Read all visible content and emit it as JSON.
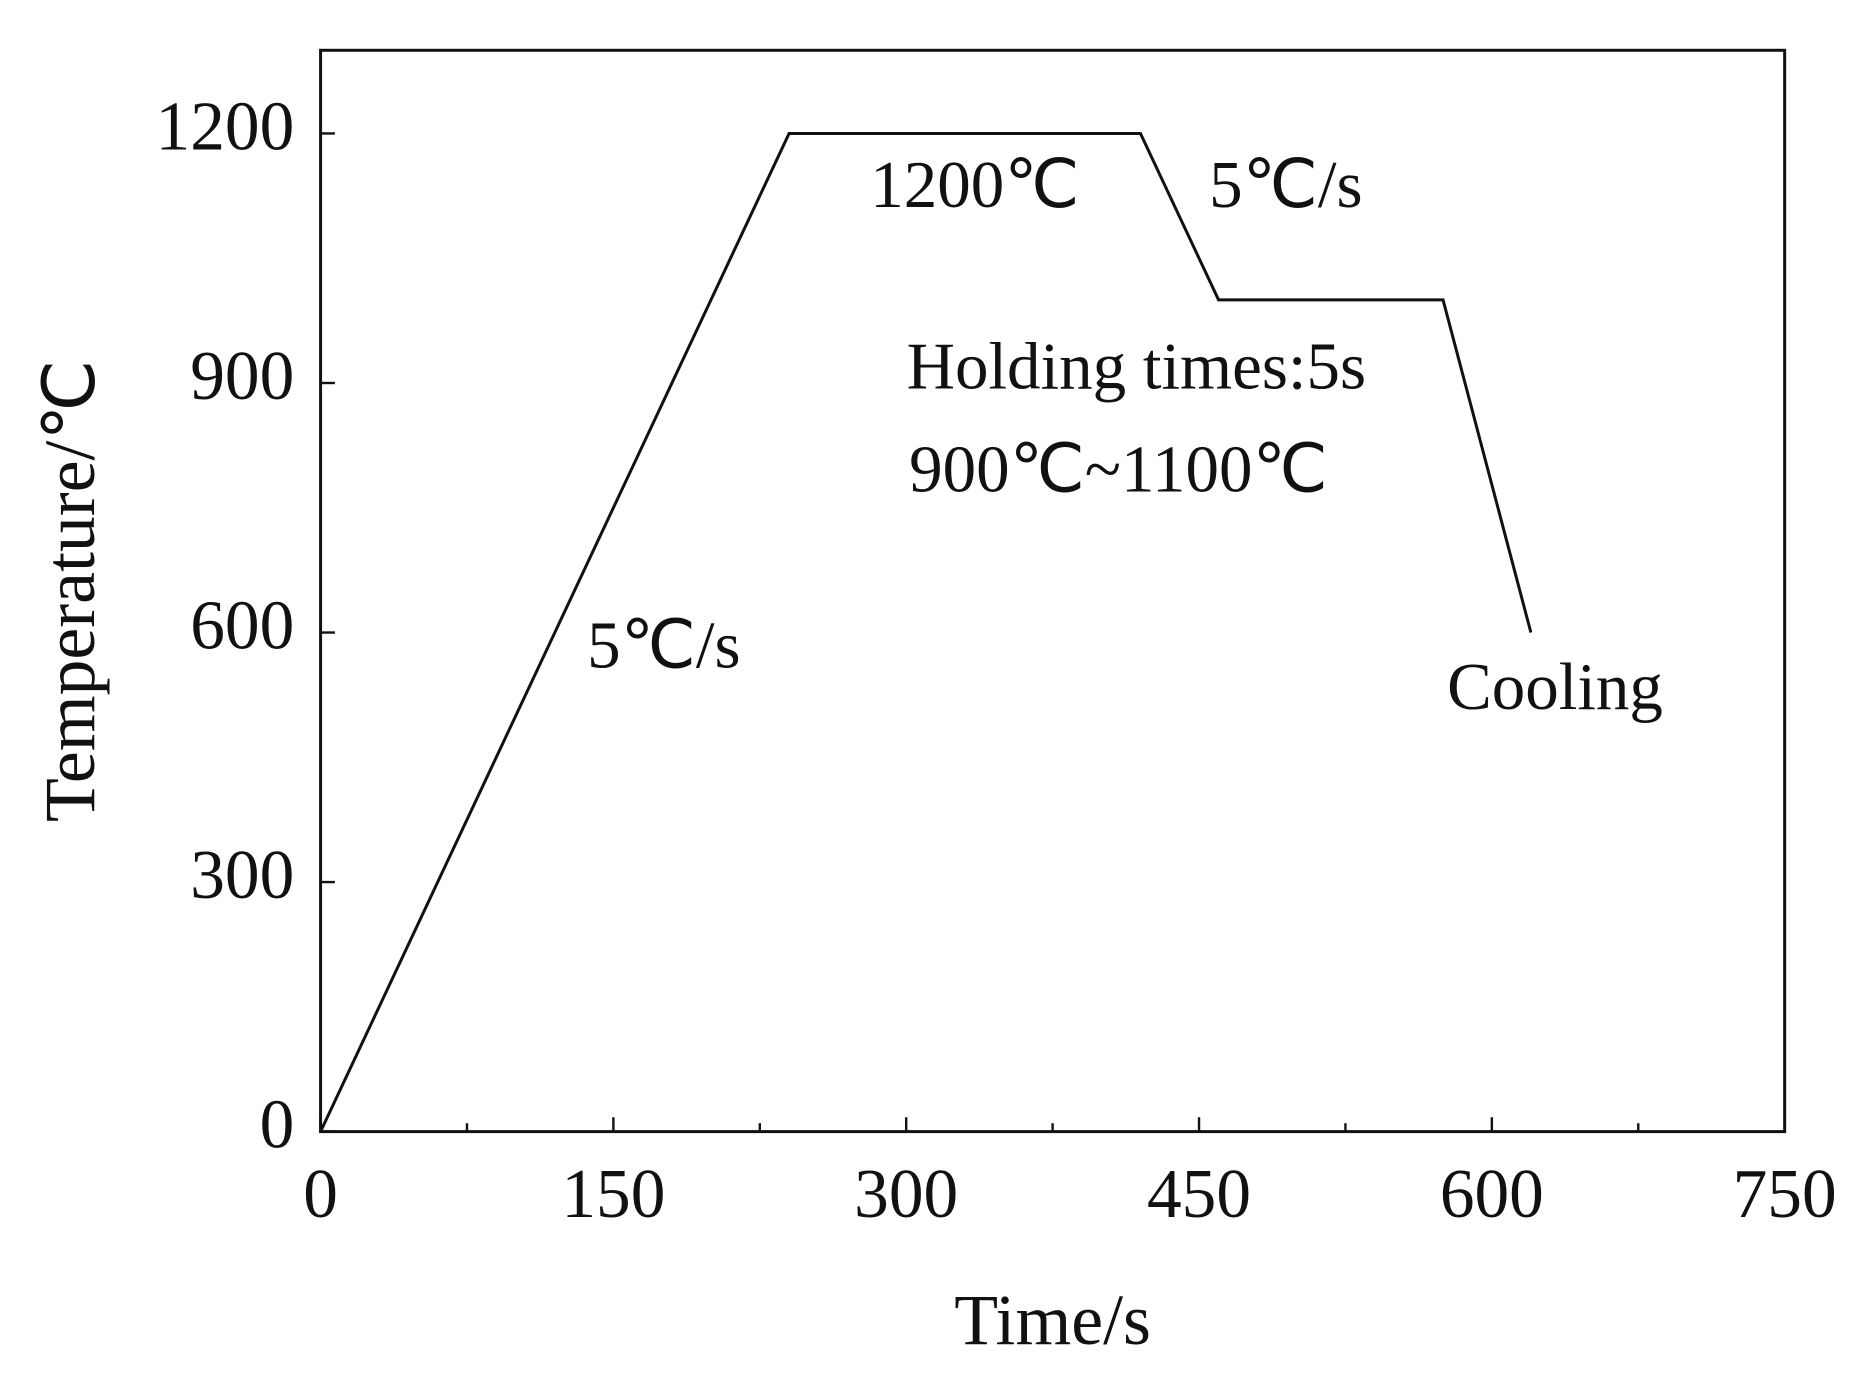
{
  "chart_data": {
    "type": "line",
    "x_label": "Time/s",
    "y_label": "Temperature/℃",
    "x": [
      0,
      240,
      420,
      460,
      575,
      620
    ],
    "series": [
      {
        "color": "#111111",
        "values": [
          0,
          1200,
          1200,
          1000,
          1000,
          600
        ]
      }
    ],
    "xlim": [
      0,
      750
    ],
    "xticks": [
      0,
      150,
      300,
      450,
      600,
      750
    ],
    "x_minor_ticks": [
      75,
      225,
      375,
      525,
      675
    ],
    "ylim": [
      0,
      1300
    ],
    "yticks": [
      0,
      300,
      600,
      900,
      1200
    ],
    "annotations": [
      "5℃/s",
      "1200℃",
      "5℃/s",
      "Holding times:5s",
      "900℃~1100℃",
      "Cooling"
    ]
  }
}
